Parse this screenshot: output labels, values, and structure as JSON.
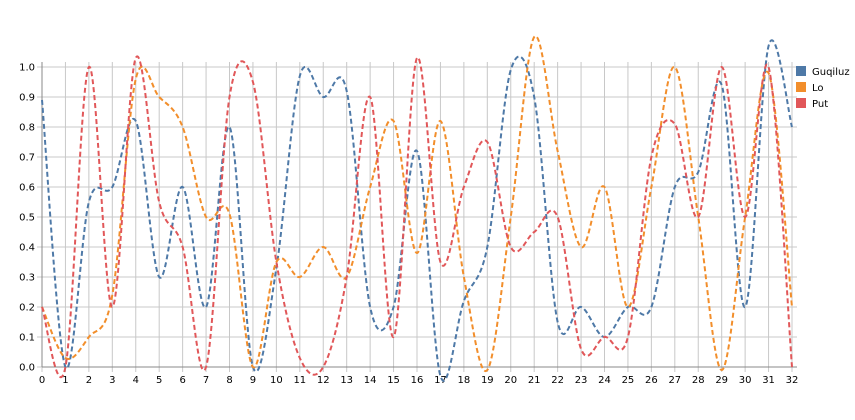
{
  "chart_data": {
    "type": "line",
    "title": "",
    "xlabel": "",
    "ylabel": "",
    "x": [
      0,
      1,
      2,
      3,
      4,
      5,
      6,
      7,
      8,
      9,
      10,
      11,
      12,
      13,
      14,
      15,
      16,
      17,
      18,
      19,
      20,
      21,
      22,
      23,
      24,
      25,
      26,
      27,
      28,
      29,
      30,
      31,
      32
    ],
    "xlim": [
      0,
      32
    ],
    "ylim": [
      0,
      1.0
    ],
    "x_ticks": [
      "0",
      "1",
      "2",
      "3",
      "4",
      "5",
      "6",
      "7",
      "8",
      "9",
      "10",
      "11",
      "12",
      "13",
      "14",
      "15",
      "16",
      "17",
      "18",
      "19",
      "20",
      "21",
      "22",
      "23",
      "24",
      "25",
      "26",
      "27",
      "28",
      "29",
      "30",
      "31",
      "32"
    ],
    "y_ticks": [
      "0.0",
      "0.1",
      "0.2",
      "0.3",
      "0.4",
      "0.5",
      "0.6",
      "0.7",
      "0.8",
      "0.9",
      "1.0"
    ],
    "grid": true,
    "legend_position": "right",
    "series": [
      {
        "name": "Guqiluz",
        "color": "#4e79a7",
        "values": [
          0.89,
          0.0,
          0.55,
          0.6,
          0.82,
          0.3,
          0.6,
          0.2,
          0.8,
          0.0,
          0.33,
          0.97,
          0.9,
          0.92,
          0.2,
          0.2,
          0.72,
          -0.03,
          0.22,
          0.4,
          0.99,
          0.9,
          0.15,
          0.2,
          0.1,
          0.2,
          0.2,
          0.6,
          0.65,
          0.94,
          0.2,
          1.07,
          0.8
        ]
      },
      {
        "name": "Lo",
        "color": "#f28e2b",
        "values": [
          0.2,
          0.03,
          0.1,
          0.24,
          0.96,
          0.9,
          0.8,
          0.5,
          0.51,
          0.0,
          0.35,
          0.3,
          0.4,
          0.3,
          0.6,
          0.82,
          0.38,
          0.82,
          0.3,
          -0.01,
          0.5,
          1.1,
          0.72,
          0.4,
          0.6,
          0.2,
          0.6,
          1.0,
          0.5,
          -0.01,
          0.5,
          0.98,
          0.2
        ]
      },
      {
        "name": "Put",
        "color": "#e15759",
        "values": [
          0.2,
          0.0,
          1.0,
          0.2,
          1.03,
          0.55,
          0.4,
          0.0,
          0.9,
          0.95,
          0.35,
          0.03,
          0.0,
          0.3,
          0.9,
          0.1,
          1.03,
          0.35,
          0.6,
          0.75,
          0.4,
          0.45,
          0.5,
          0.06,
          0.1,
          0.1,
          0.7,
          0.81,
          0.5,
          1.0,
          0.5,
          1.0,
          0.0
        ]
      }
    ]
  }
}
